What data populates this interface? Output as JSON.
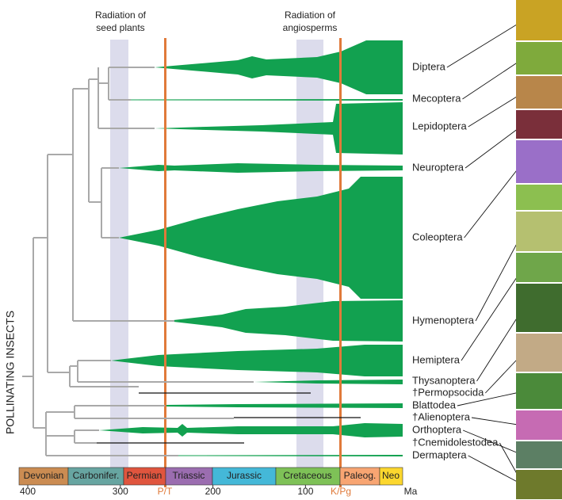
{
  "events": [
    [
      "Radiation of",
      "seed plants"
    ],
    [
      "Radiation of",
      "angiosperms"
    ]
  ],
  "boundaries": [
    "P/T",
    "K/Pg"
  ],
  "side_label": "POLLINATING INSECTS",
  "taxa": [
    "Diptera",
    "Mecoptera",
    "Lepidoptera",
    "Neuroptera",
    "Coleoptera",
    "Hymenoptera",
    "Hemiptera",
    "Thysanoptera",
    "†Permopsocida",
    "Blattodea",
    "†Alienoptera",
    "Orthoptera",
    "†Cnemidolestodea",
    "Dermaptera"
  ],
  "periods": [
    "Devonian",
    "Carbonifer.",
    "Permian",
    "Triassic",
    "Jurassic",
    "Cretaceous",
    "Paleog.",
    "Neo"
  ],
  "axis": {
    "xlim": [
      430,
      -5
    ],
    "ticks": [
      400,
      300,
      200,
      100
    ],
    "unit": "Ma"
  }
}
